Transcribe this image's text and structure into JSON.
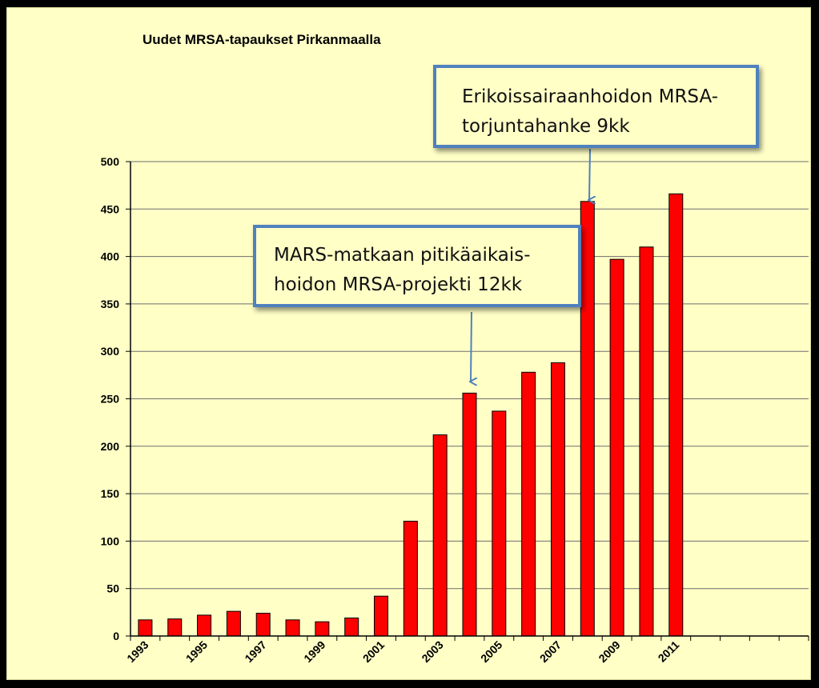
{
  "chart_data": {
    "type": "bar",
    "title": "Uudet MRSA-tapaukset Pirkanmaalla",
    "xlabel": "",
    "ylabel": "",
    "ylim": [
      0,
      500
    ],
    "yticks": [
      0,
      50,
      100,
      150,
      200,
      250,
      300,
      350,
      400,
      450,
      500
    ],
    "grid": true,
    "categories": [
      "1993",
      "1994",
      "1995",
      "1996",
      "1997",
      "1998",
      "1999",
      "2000",
      "2001",
      "2002",
      "2003",
      "2004",
      "2005",
      "2006",
      "2007",
      "2008",
      "2009",
      "2010",
      "2011",
      "2012",
      "2013",
      "2014",
      "2015"
    ],
    "x_tick_labels": [
      "1993",
      "",
      "1995",
      "",
      "1997",
      "",
      "1999",
      "",
      "2001",
      "",
      "2003",
      "",
      "2005",
      "",
      "2007",
      "",
      "2009",
      "",
      "2011",
      "",
      "",
      "",
      ""
    ],
    "values": [
      17,
      18,
      22,
      26,
      24,
      17,
      15,
      19,
      42,
      121,
      212,
      256,
      237,
      278,
      288,
      458,
      397,
      410,
      466,
      null,
      null,
      null,
      null
    ],
    "bar_color": "#ff0000",
    "annotations": [
      {
        "id": "callout-a",
        "lines": [
          "Erikoissairaanhoidon MRSA-",
          "torjuntahanke 9kk"
        ],
        "points_to": "2008"
      },
      {
        "id": "callout-b",
        "lines": [
          "MARS-matkaan pitikäaikais-",
          "hoidon MRSA-projekti 12kk"
        ],
        "points_to": "2004"
      }
    ]
  }
}
